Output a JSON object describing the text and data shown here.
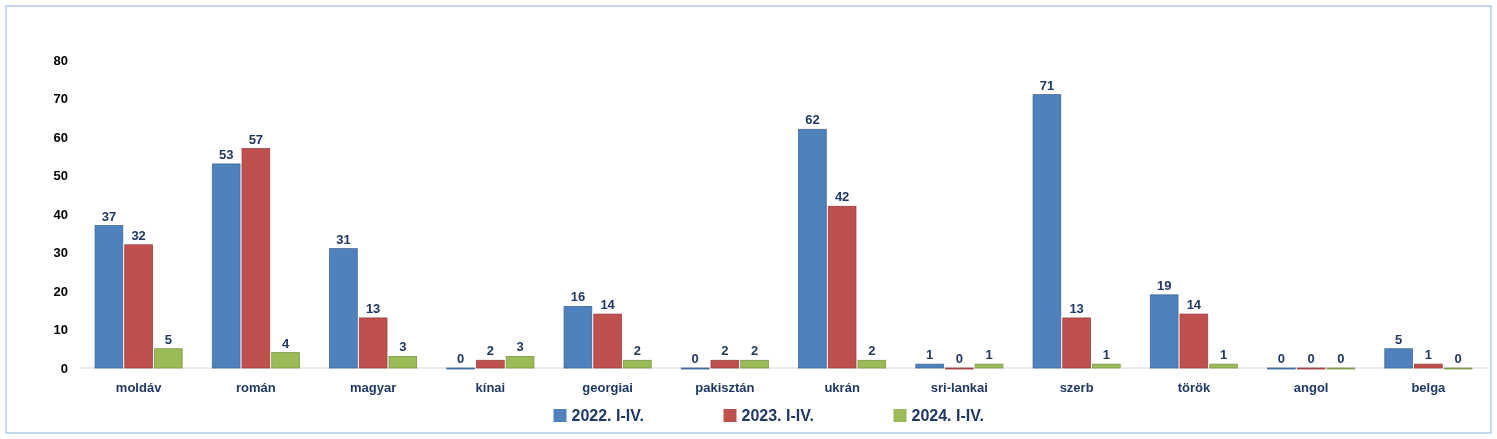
{
  "chart_data": {
    "type": "bar",
    "categories": [
      "moldáv",
      "román",
      "magyar",
      "kínai",
      "georgiai",
      "pakisztán",
      "ukrán",
      "sri-lankai",
      "szerb",
      "török",
      "angol",
      "belga"
    ],
    "series": [
      {
        "name": "2022. I-IV.",
        "color": "#4f81bd",
        "values": [
          37,
          53,
          31,
          0,
          16,
          0,
          62,
          1,
          71,
          19,
          0,
          5
        ]
      },
      {
        "name": "2023. I-IV.",
        "color": "#c0504d",
        "values": [
          32,
          57,
          13,
          2,
          14,
          2,
          42,
          0,
          13,
          14,
          0,
          1
        ]
      },
      {
        "name": "2024. I-IV.",
        "color": "#9bbb59",
        "values": [
          5,
          4,
          3,
          3,
          2,
          2,
          2,
          1,
          1,
          1,
          0,
          0
        ]
      }
    ],
    "ylim": [
      0,
      80
    ],
    "yticks": [
      0,
      10,
      20,
      30,
      40,
      50,
      60,
      70,
      80
    ],
    "data_labels": true,
    "legend": "bottom",
    "grid": false
  }
}
